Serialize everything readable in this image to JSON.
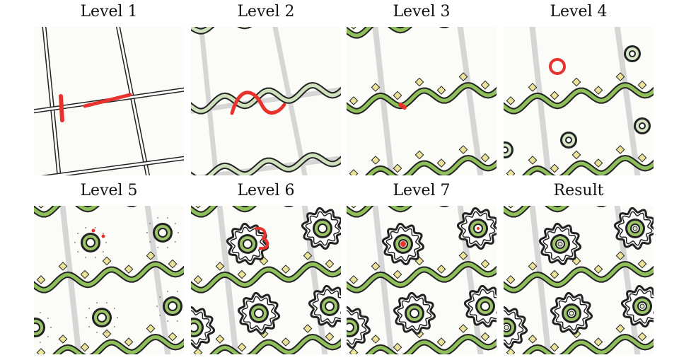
{
  "figure": {
    "panels": [
      {
        "id": "level1",
        "title": "Level 1"
      },
      {
        "id": "level2",
        "title": "Level 2"
      },
      {
        "id": "level3",
        "title": "Level 3"
      },
      {
        "id": "level4",
        "title": "Level 4"
      },
      {
        "id": "level5",
        "title": "Level 5"
      },
      {
        "id": "level6",
        "title": "Level 6"
      },
      {
        "id": "level7",
        "title": "Level 7"
      },
      {
        "id": "result",
        "title": "Result"
      }
    ]
  },
  "colors": {
    "background": "#fbfbf8",
    "outline": "#222222",
    "grid_fill": "#ffffff",
    "grid_faded": "#d6d6d6",
    "vine_green": "#8fbf5a",
    "vine_pale": "#cfe0bd",
    "leaf_yellow": "#ece39a",
    "stroke_red": "#e8322c",
    "ring_green": "#9cc56a",
    "ring_pale": "#d7e6c9"
  }
}
